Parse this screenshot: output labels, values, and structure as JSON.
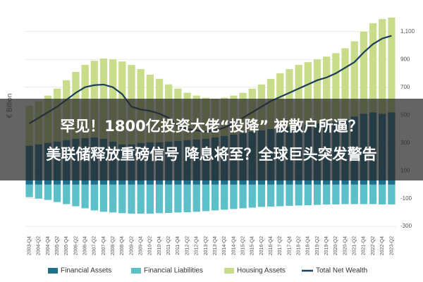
{
  "chart_data": {
    "type": "stacked-bar-line",
    "y_label": "€ Billion",
    "categories": [
      "2003-Q4",
      "2004-Q2",
      "2004-Q4",
      "2005-Q2",
      "2005-Q4",
      "2006-Q2",
      "2006-Q4",
      "2007-Q2",
      "2007-Q4",
      "2008-Q2",
      "2008-Q4",
      "2009-Q2",
      "2009-Q4",
      "2010-Q2",
      "2010-Q4",
      "2011-Q2",
      "2011-Q4",
      "2012-Q2",
      "2012-Q4",
      "2013-Q2",
      "2013-Q4",
      "2014-Q2",
      "2014-Q4",
      "2015-Q2",
      "2015-Q4",
      "2016-Q2",
      "2016-Q4",
      "2017-Q2",
      "2017-Q4",
      "2018-Q2",
      "2018-Q4",
      "2019-Q2",
      "2019-Q4",
      "2020-Q2",
      "2020-Q4",
      "2021-Q2",
      "2021-Q4",
      "2022-Q2",
      "2022-Q4",
      "2023-Q2"
    ],
    "series": [
      {
        "name": "Financial Assets",
        "color": "#1f6f8b",
        "kind": "bar",
        "values": [
          280,
          290,
          300,
          310,
          320,
          330,
          335,
          340,
          330,
          310,
          290,
          290,
          300,
          305,
          305,
          310,
          315,
          320,
          325,
          330,
          340,
          350,
          360,
          370,
          380,
          390,
          400,
          410,
          415,
          420,
          430,
          440,
          445,
          450,
          470,
          490,
          510,
          520,
          510,
          520
        ]
      },
      {
        "name": "Financial Liabilities",
        "color": "#5bc0c8",
        "kind": "bar",
        "values": [
          -90,
          -100,
          -110,
          -125,
          -140,
          -155,
          -170,
          -185,
          -195,
          -200,
          -205,
          -208,
          -208,
          -208,
          -205,
          -203,
          -200,
          -198,
          -195,
          -190,
          -185,
          -180,
          -175,
          -170,
          -165,
          -160,
          -158,
          -155,
          -152,
          -150,
          -148,
          -145,
          -143,
          -142,
          -140,
          -140,
          -140,
          -140,
          -142,
          -142
        ]
      },
      {
        "name": "Housing Assets",
        "color": "#c9dc8a",
        "kind": "bar",
        "stack_on": 0,
        "values": [
          287,
          310,
          340,
          380,
          430,
          480,
          525,
          550,
          576,
          590,
          595,
          570,
          530,
          485,
          455,
          410,
          375,
          340,
          315,
          295,
          278,
          275,
          280,
          290,
          310,
          330,
          360,
          390,
          415,
          440,
          450,
          460,
          475,
          495,
          510,
          540,
          590,
          640,
          680,
          680
        ]
      },
      {
        "name": "Total Net Wealth",
        "color": "#1c3d5a",
        "kind": "line",
        "values": [
          440,
          480,
          520,
          560,
          610,
          660,
          700,
          715,
          719,
          700,
          650,
          560,
          540,
          530,
          510,
          480,
          420,
          400,
          390,
          380,
          390,
          410,
          440,
          480,
          520,
          560,
          600,
          630,
          660,
          690,
          720,
          750,
          770,
          800,
          840,
          880,
          950,
          1010,
          1050,
          1070
        ]
      }
    ],
    "ylim": [
      -350,
      1200
    ],
    "yticks": [
      -300,
      -100,
      100,
      300,
      500,
      700,
      900,
      {
        "value": 1100,
        "label": "1,100"
      }
    ],
    "grid": true
  },
  "headline": [
    "罕见！1800亿投资大佬“投降” 被散户所逼？",
    "美联储释放重磅信号 降息将至？全球巨头突发警告"
  ]
}
